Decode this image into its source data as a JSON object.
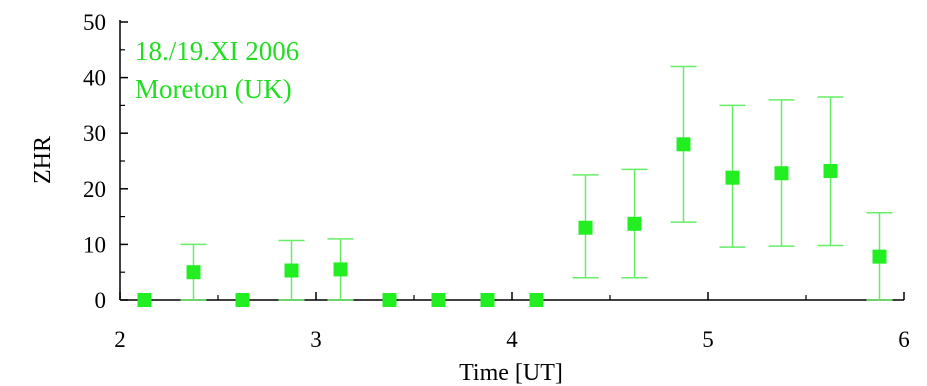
{
  "chart_data": {
    "type": "scatter",
    "title": "",
    "xlabel": "Time [UT]",
    "ylabel": "ZHR",
    "xlim": [
      2,
      6
    ],
    "ylim": [
      0,
      50
    ],
    "xticks": [
      2,
      3,
      4,
      5,
      6
    ],
    "yticks": [
      0,
      10,
      20,
      30,
      40,
      50
    ],
    "grid": false,
    "annotations": [
      "18./19.XI 2006",
      "Moreton (UK)"
    ],
    "colors": {
      "marker": "#22ee22",
      "errorbar": "#66ee66",
      "annotation": "#22dd22",
      "axis": "#000000"
    },
    "series": [
      {
        "x": [
          2.125,
          2.375,
          2.625,
          2.875,
          3.125,
          3.375,
          3.625,
          3.875,
          4.125,
          4.375,
          4.625,
          4.875,
          5.125,
          5.375,
          5.625,
          5.875
        ],
        "y": [
          0,
          5,
          0,
          5.3,
          5.5,
          0,
          0,
          0,
          0,
          13,
          13.7,
          28,
          22,
          22.8,
          23.2,
          7.8
        ],
        "y_low": [
          0,
          0,
          0,
          0,
          0,
          0,
          0,
          0,
          0,
          4,
          4,
          14,
          9.5,
          9.7,
          9.8,
          0
        ],
        "y_high": [
          0,
          10,
          0,
          10.7,
          11,
          0,
          0,
          0,
          0,
          22.5,
          23.5,
          42,
          35,
          36,
          36.5,
          15.7
        ]
      }
    ]
  }
}
